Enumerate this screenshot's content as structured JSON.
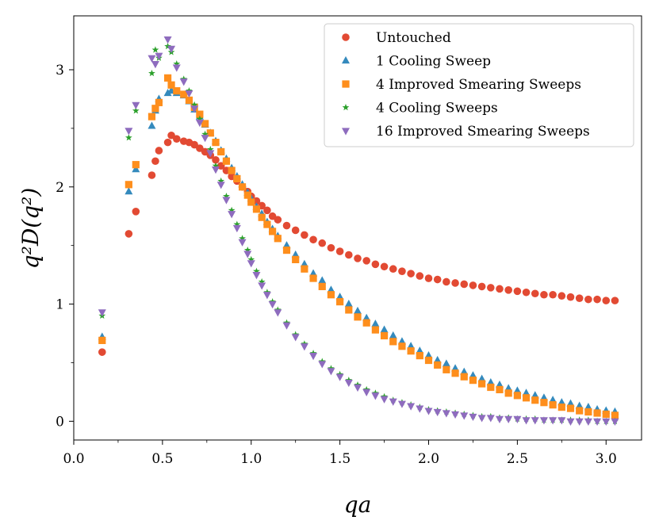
{
  "chart_data": {
    "type": "scatter",
    "title": "",
    "xlabel": "qa",
    "ylabel": "q²D(q²)",
    "xlim": [
      0.0,
      3.2
    ],
    "ylim": [
      -0.16,
      3.46
    ],
    "xticks": [
      "0.0",
      "0.5",
      "1.0",
      "1.5",
      "2.0",
      "2.5",
      "3.0"
    ],
    "yticks": [
      "0",
      "1",
      "2",
      "3"
    ],
    "grid": false,
    "legend_position": "top-right",
    "series": [
      {
        "name": "Untouched",
        "color": "#e24a33",
        "marker": "circle",
        "x": [
          0.16,
          0.31,
          0.35,
          0.44,
          0.46,
          0.48,
          0.53,
          0.55,
          0.58,
          0.62,
          0.65,
          0.68,
          0.71,
          0.74,
          0.77,
          0.8,
          0.83,
          0.86,
          0.89,
          0.92,
          0.95,
          0.98,
          1.0,
          1.03,
          1.06,
          1.09,
          1.12,
          1.15,
          1.2,
          1.25,
          1.3,
          1.35,
          1.4,
          1.45,
          1.5,
          1.55,
          1.6,
          1.65,
          1.7,
          1.75,
          1.8,
          1.85,
          1.9,
          1.95,
          2.0,
          2.05,
          2.1,
          2.15,
          2.2,
          2.25,
          2.3,
          2.35,
          2.4,
          2.45,
          2.5,
          2.55,
          2.6,
          2.65,
          2.7,
          2.75,
          2.8,
          2.85,
          2.9,
          2.95,
          3.0,
          3.05
        ],
        "y": [
          0.59,
          1.6,
          1.79,
          2.1,
          2.22,
          2.31,
          2.38,
          2.44,
          2.41,
          2.39,
          2.38,
          2.36,
          2.33,
          2.3,
          2.27,
          2.23,
          2.18,
          2.14,
          2.09,
          2.05,
          2.0,
          1.96,
          1.92,
          1.88,
          1.84,
          1.8,
          1.75,
          1.72,
          1.67,
          1.63,
          1.59,
          1.55,
          1.52,
          1.48,
          1.45,
          1.42,
          1.39,
          1.37,
          1.34,
          1.32,
          1.3,
          1.28,
          1.26,
          1.24,
          1.22,
          1.21,
          1.19,
          1.18,
          1.17,
          1.16,
          1.15,
          1.14,
          1.13,
          1.12,
          1.11,
          1.1,
          1.09,
          1.08,
          1.08,
          1.07,
          1.06,
          1.05,
          1.04,
          1.04,
          1.03,
          1.03
        ]
      },
      {
        "name": "1 Cooling Sweep",
        "color": "#348abd",
        "marker": "triangle-up",
        "x": [
          0.16,
          0.31,
          0.35,
          0.44,
          0.46,
          0.48,
          0.53,
          0.55,
          0.58,
          0.62,
          0.65,
          0.68,
          0.71,
          0.74,
          0.77,
          0.8,
          0.83,
          0.86,
          0.89,
          0.92,
          0.95,
          0.98,
          1.0,
          1.03,
          1.06,
          1.09,
          1.12,
          1.15,
          1.2,
          1.25,
          1.3,
          1.35,
          1.4,
          1.45,
          1.5,
          1.55,
          1.6,
          1.65,
          1.7,
          1.75,
          1.8,
          1.85,
          1.9,
          1.95,
          2.0,
          2.05,
          2.1,
          2.15,
          2.2,
          2.25,
          2.3,
          2.35,
          2.4,
          2.45,
          2.5,
          2.55,
          2.6,
          2.65,
          2.7,
          2.75,
          2.8,
          2.85,
          2.9,
          2.95,
          3.0,
          3.05
        ],
        "y": [
          0.72,
          1.96,
          2.15,
          2.52,
          2.65,
          2.75,
          2.8,
          2.82,
          2.8,
          2.78,
          2.73,
          2.66,
          2.6,
          2.53,
          2.46,
          2.39,
          2.31,
          2.24,
          2.16,
          2.09,
          2.02,
          1.95,
          1.9,
          1.83,
          1.77,
          1.7,
          1.64,
          1.58,
          1.5,
          1.42,
          1.34,
          1.26,
          1.2,
          1.12,
          1.06,
          1.0,
          0.94,
          0.88,
          0.83,
          0.78,
          0.73,
          0.68,
          0.64,
          0.6,
          0.56,
          0.52,
          0.49,
          0.45,
          0.42,
          0.39,
          0.36,
          0.33,
          0.31,
          0.28,
          0.26,
          0.24,
          0.22,
          0.2,
          0.18,
          0.16,
          0.15,
          0.13,
          0.12,
          0.1,
          0.09,
          0.08
        ]
      },
      {
        "name": "4 Improved Smearing Sweeps",
        "color": "#fe8e1c",
        "marker": "square",
        "x": [
          0.16,
          0.31,
          0.35,
          0.44,
          0.46,
          0.48,
          0.53,
          0.55,
          0.58,
          0.62,
          0.65,
          0.68,
          0.71,
          0.74,
          0.77,
          0.8,
          0.83,
          0.86,
          0.89,
          0.92,
          0.95,
          0.98,
          1.0,
          1.03,
          1.06,
          1.09,
          1.12,
          1.15,
          1.2,
          1.25,
          1.3,
          1.35,
          1.4,
          1.45,
          1.5,
          1.55,
          1.6,
          1.65,
          1.7,
          1.75,
          1.8,
          1.85,
          1.9,
          1.95,
          2.0,
          2.05,
          2.1,
          2.15,
          2.2,
          2.25,
          2.3,
          2.35,
          2.4,
          2.45,
          2.5,
          2.55,
          2.6,
          2.65,
          2.7,
          2.75,
          2.8,
          2.85,
          2.9,
          2.95,
          3.0,
          3.05
        ],
        "y": [
          0.69,
          2.02,
          2.19,
          2.6,
          2.67,
          2.72,
          2.93,
          2.87,
          2.82,
          2.79,
          2.74,
          2.68,
          2.62,
          2.54,
          2.46,
          2.38,
          2.3,
          2.22,
          2.14,
          2.07,
          2.0,
          1.93,
          1.87,
          1.81,
          1.74,
          1.68,
          1.62,
          1.56,
          1.46,
          1.38,
          1.3,
          1.22,
          1.15,
          1.08,
          1.02,
          0.95,
          0.89,
          0.84,
          0.78,
          0.73,
          0.68,
          0.64,
          0.6,
          0.56,
          0.52,
          0.48,
          0.44,
          0.41,
          0.38,
          0.35,
          0.32,
          0.29,
          0.27,
          0.24,
          0.22,
          0.2,
          0.18,
          0.16,
          0.14,
          0.12,
          0.11,
          0.09,
          0.08,
          0.07,
          0.06,
          0.05
        ]
      },
      {
        "name": "4 Cooling Sweeps",
        "color": "#2ca02c",
        "marker": "star",
        "x": [
          0.16,
          0.31,
          0.35,
          0.44,
          0.46,
          0.48,
          0.53,
          0.55,
          0.58,
          0.62,
          0.65,
          0.68,
          0.71,
          0.74,
          0.77,
          0.8,
          0.83,
          0.86,
          0.89,
          0.92,
          0.95,
          0.98,
          1.0,
          1.03,
          1.06,
          1.09,
          1.12,
          1.15,
          1.2,
          1.25,
          1.3,
          1.35,
          1.4,
          1.45,
          1.5,
          1.55,
          1.6,
          1.65,
          1.7,
          1.75,
          1.8,
          1.85,
          1.9,
          1.95,
          2.0,
          2.05,
          2.1,
          2.15,
          2.2,
          2.25,
          2.3,
          2.35,
          2.4,
          2.45,
          2.5,
          2.55,
          2.6,
          2.65,
          2.7,
          2.75,
          2.8,
          2.85,
          2.9,
          2.95,
          3.0,
          3.05
        ],
        "y": [
          0.9,
          2.42,
          2.65,
          2.97,
          3.17,
          3.1,
          3.2,
          3.15,
          3.05,
          2.92,
          2.82,
          2.7,
          2.58,
          2.45,
          2.32,
          2.18,
          2.05,
          1.92,
          1.8,
          1.68,
          1.56,
          1.46,
          1.38,
          1.28,
          1.19,
          1.1,
          1.02,
          0.95,
          0.84,
          0.74,
          0.66,
          0.58,
          0.51,
          0.45,
          0.4,
          0.35,
          0.31,
          0.27,
          0.24,
          0.21,
          0.18,
          0.16,
          0.14,
          0.12,
          0.1,
          0.09,
          0.08,
          0.07,
          0.06,
          0.05,
          0.04,
          0.04,
          0.03,
          0.03,
          0.02,
          0.02,
          0.02,
          0.01,
          0.01,
          0.01,
          0.01,
          0.01,
          0.01,
          0.0,
          0.0,
          0.0
        ]
      },
      {
        "name": "16 Improved Smearing Sweeps",
        "color": "#8e6cbe",
        "marker": "triangle-down",
        "x": [
          0.16,
          0.31,
          0.35,
          0.44,
          0.46,
          0.48,
          0.53,
          0.55,
          0.58,
          0.62,
          0.65,
          0.68,
          0.71,
          0.74,
          0.77,
          0.8,
          0.83,
          0.86,
          0.89,
          0.92,
          0.95,
          0.98,
          1.0,
          1.03,
          1.06,
          1.09,
          1.12,
          1.15,
          1.2,
          1.25,
          1.3,
          1.35,
          1.4,
          1.45,
          1.5,
          1.55,
          1.6,
          1.65,
          1.7,
          1.75,
          1.8,
          1.85,
          1.9,
          1.95,
          2.0,
          2.05,
          2.1,
          2.15,
          2.2,
          2.25,
          2.3,
          2.35,
          2.4,
          2.45,
          2.5,
          2.55,
          2.6,
          2.65,
          2.7,
          2.75,
          2.8,
          2.85,
          2.9,
          2.95,
          3.0,
          3.05
        ],
        "y": [
          0.93,
          2.48,
          2.7,
          3.1,
          3.05,
          3.12,
          3.26,
          3.18,
          3.02,
          2.9,
          2.8,
          2.67,
          2.55,
          2.42,
          2.29,
          2.15,
          2.02,
          1.89,
          1.77,
          1.65,
          1.53,
          1.43,
          1.35,
          1.25,
          1.16,
          1.08,
          1.0,
          0.93,
          0.82,
          0.72,
          0.64,
          0.56,
          0.49,
          0.43,
          0.38,
          0.33,
          0.29,
          0.25,
          0.22,
          0.19,
          0.17,
          0.15,
          0.13,
          0.11,
          0.09,
          0.08,
          0.07,
          0.06,
          0.05,
          0.04,
          0.03,
          0.03,
          0.02,
          0.02,
          0.02,
          0.01,
          0.01,
          0.01,
          0.01,
          0.01,
          0.0,
          0.0,
          0.0,
          0.0,
          0.0,
          0.0
        ]
      }
    ]
  }
}
